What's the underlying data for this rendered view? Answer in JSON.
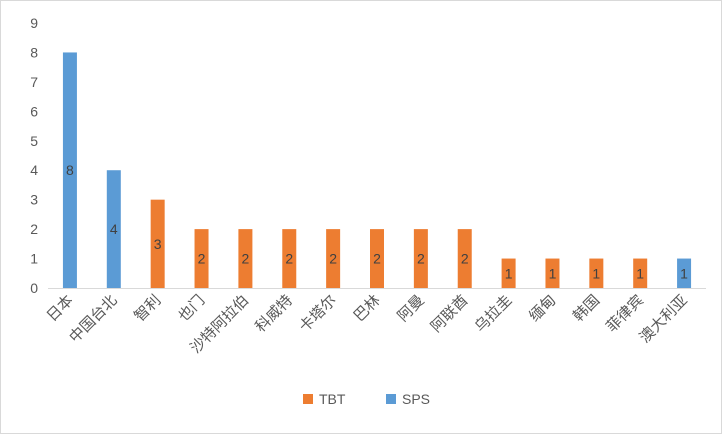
{
  "chart_data": {
    "type": "bar",
    "title": "",
    "xlabel": "",
    "ylabel": "",
    "ylim": [
      0,
      9
    ],
    "yticks": [
      "0",
      "1",
      "2",
      "3",
      "4",
      "5",
      "6",
      "7",
      "8",
      "9"
    ],
    "grid": false,
    "legend_position": "bottom",
    "categories": [
      "日本",
      "中国台北",
      "智利",
      "也门",
      "沙特阿拉伯",
      "科威特",
      "卡塔尔",
      "巴林",
      "阿曼",
      "阿联酋",
      "乌拉圭",
      "缅甸",
      "韩国",
      "菲律宾",
      "澳大利亚"
    ],
    "values": [
      8,
      4,
      3,
      2,
      2,
      2,
      2,
      2,
      2,
      2,
      1,
      1,
      1,
      1,
      1
    ],
    "measure": [
      "SPS",
      "SPS",
      "TBT",
      "TBT",
      "TBT",
      "TBT",
      "TBT",
      "TBT",
      "TBT",
      "TBT",
      "TBT",
      "TBT",
      "TBT",
      "TBT",
      "SPS"
    ],
    "series": [
      {
        "name": "TBT",
        "color": "#ED7D31"
      },
      {
        "name": "SPS",
        "color": "#5B9BD5"
      }
    ]
  }
}
